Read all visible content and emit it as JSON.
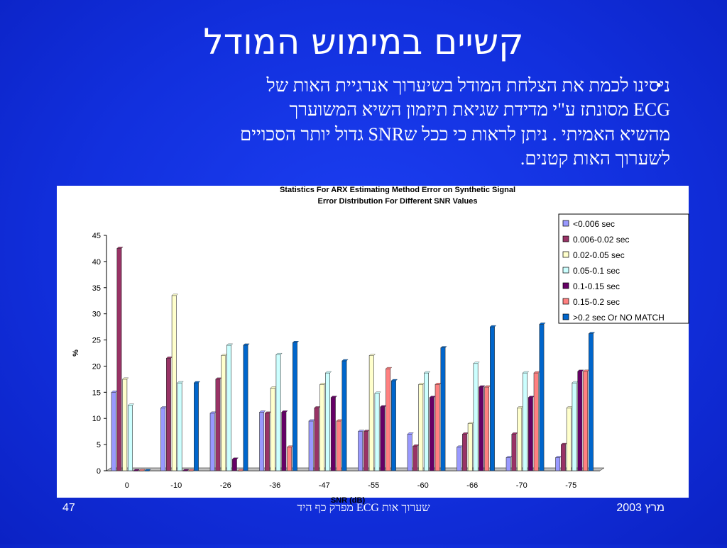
{
  "slide": {
    "title": "קשיים במימוש המודל",
    "bullet_line1": "ניסינו לכמת את הצלחת המודל בשיערוך אנרגיית האות של",
    "bullet_line2": "ECG מסונתז ע\"י מדידת שגיאת תיזמון השיא המשוערך",
    "bullet_line3": "מהשיא האמיתי . ניתן לראות כי ככל שSNR גדול יותר הסכויים",
    "bullet_line4": "לשערוך האות קטנים.",
    "bullet_symbol": "•"
  },
  "footer": {
    "left": "47",
    "center": "שערוך אות ECG מפרק כף היד",
    "right": "מרץ 2003"
  },
  "colors": {
    "background": "#1230de",
    "text": "#ffffff"
  },
  "chart_data": {
    "type": "bar",
    "title": "Statistics For ARX Estimating Method Error on Synthetic Signal",
    "subtitle": "Error Distribution For Different SNR Values",
    "xlabel": "SNR (dB)",
    "ylabel": "%",
    "ylim": [
      0,
      45
    ],
    "yticks": [
      0,
      5,
      10,
      15,
      20,
      25,
      30,
      35,
      40,
      45
    ],
    "grid": false,
    "legend_position": "top-right",
    "categories": [
      "0",
      "-10",
      "-26",
      "-36",
      "-47",
      "-55",
      "-60",
      "-66",
      "-70",
      "-75"
    ],
    "series": [
      {
        "name": "<0.006 sec",
        "color": "#9999ff",
        "values": [
          15,
          12,
          11,
          11.2,
          9.5,
          7.5,
          7,
          4.5,
          2.5,
          2.5
        ]
      },
      {
        "name": "0.006-0.02 sec",
        "color": "#993366",
        "values": [
          42.5,
          21.5,
          17.5,
          11,
          12,
          7.5,
          4.7,
          7,
          7,
          5
        ]
      },
      {
        "name": "0.02-0.05 sec",
        "color": "#ffffcc",
        "values": [
          17.5,
          33.5,
          22,
          15.8,
          16.5,
          22,
          16.5,
          9,
          12,
          12
        ]
      },
      {
        "name": "0.05-0.1 sec",
        "color": "#ccffff",
        "values": [
          12.5,
          16.8,
          24,
          22.2,
          18.7,
          14.8,
          18.7,
          20.5,
          18.7,
          16.8
        ]
      },
      {
        "name": "0.1-0.15 sec",
        "color": "#660066",
        "values": [
          0,
          0,
          2.2,
          11.2,
          14,
          12.2,
          14,
          16,
          14,
          19
        ]
      },
      {
        "name": "0.15-0.2 sec",
        "color": "#ff8080",
        "values": [
          0,
          0,
          0,
          4.5,
          9.5,
          19.5,
          16.5,
          16,
          18.7,
          19
        ]
      },
      {
        "name": ">0.2 sec Or NO MATCH",
        "color": "#0066cc",
        "values": [
          0,
          16.8,
          24,
          24.5,
          21,
          17.2,
          23.5,
          27.5,
          28,
          26.2
        ]
      }
    ]
  }
}
